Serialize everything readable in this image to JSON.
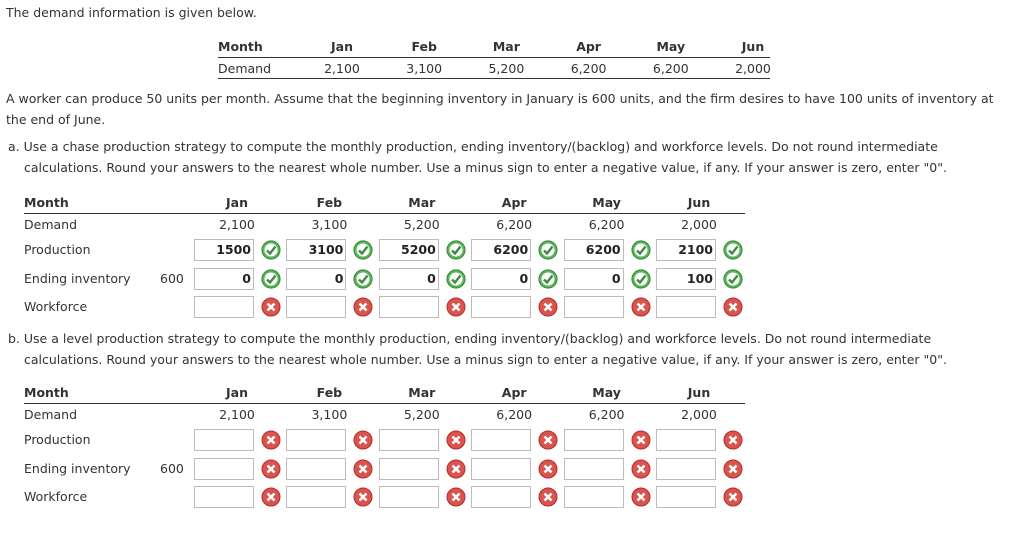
{
  "intro": "The demand information is given below.",
  "demand_table": {
    "month_label": "Month",
    "demand_label": "Demand",
    "months": [
      "Jan",
      "Feb",
      "Mar",
      "Apr",
      "May",
      "Jun"
    ],
    "demand": [
      "2,100",
      "3,100",
      "5,200",
      "6,200",
      "6,200",
      "2,000"
    ]
  },
  "assumption": "A worker can produce 50 units per month. Assume that the beginning inventory in January is 600 units, and the firm desires to have 100 units of inventory at the end of June.",
  "part_a": {
    "prompt": "a. Use a chase production strategy to compute the monthly production, ending inventory/(backlog) and workforce levels. Do not round intermediate calculations. Round your answers to the nearest whole number. Use a minus sign to enter a negative value, if any. If your answer is zero, enter \"0\".",
    "table": {
      "month_label": "Month",
      "demand_label": "Demand",
      "production_label": "Production",
      "ending_label": "Ending inventory",
      "workforce_label": "Workforce",
      "beginning_inventory": "600",
      "months": [
        "Jan",
        "Feb",
        "Mar",
        "Apr",
        "May",
        "Jun"
      ],
      "demand": [
        "2,100",
        "3,100",
        "5,200",
        "6,200",
        "6,200",
        "2,000"
      ],
      "production": [
        "1500",
        "3100",
        "5200",
        "6200",
        "6200",
        "2100"
      ],
      "ending_inventory": [
        "0",
        "0",
        "0",
        "0",
        "0",
        "100"
      ]
    }
  },
  "part_b": {
    "prompt": "b. Use a level production strategy to compute the monthly production, ending inventory/(backlog) and workforce levels. Do not round intermediate calculations. Round your answers to the nearest whole number. Use a minus sign to enter a negative value, if any. If your answer is zero, enter \"0\".",
    "table": {
      "month_label": "Month",
      "demand_label": "Demand",
      "production_label": "Production",
      "ending_label": "Ending inventory",
      "workforce_label": "Workforce",
      "beginning_inventory": "600",
      "months": [
        "Jan",
        "Feb",
        "Mar",
        "Apr",
        "May",
        "Jun"
      ],
      "demand": [
        "2,100",
        "3,100",
        "5,200",
        "6,200",
        "6,200",
        "2,000"
      ]
    }
  }
}
